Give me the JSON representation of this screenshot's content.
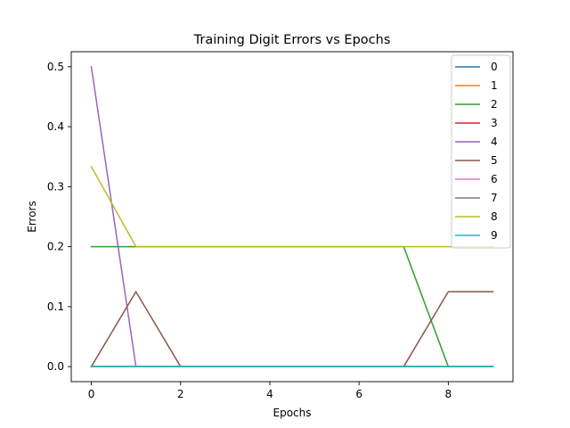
{
  "chart_data": {
    "type": "line",
    "title": "Training Digit Errors vs Epochs",
    "xlabel": "Epochs",
    "ylabel": "Errors",
    "xlim": [
      -0.45,
      9.45
    ],
    "ylim": [
      -0.025,
      0.525
    ],
    "xticks": [
      0,
      2,
      4,
      6,
      8
    ],
    "yticks": [
      0.0,
      0.1,
      0.2,
      0.3,
      0.4,
      0.5
    ],
    "ytick_labels": [
      "0.0",
      "0.1",
      "0.2",
      "0.3",
      "0.4",
      "0.5"
    ],
    "grid": false,
    "legend_position": "top-right",
    "x": [
      0,
      1,
      2,
      3,
      4,
      5,
      6,
      7,
      8,
      9
    ],
    "series": [
      {
        "name": "0",
        "color": "#1f77b4",
        "values": [
          0,
          0,
          0,
          0,
          0,
          0,
          0,
          0,
          0,
          0
        ]
      },
      {
        "name": "1",
        "color": "#ff7f0e",
        "values": [
          0,
          0,
          0,
          0,
          0,
          0,
          0,
          0,
          0,
          0
        ]
      },
      {
        "name": "2",
        "color": "#2ca02c",
        "values": [
          0.2,
          0.2,
          0.2,
          0.2,
          0.2,
          0.2,
          0.2,
          0.2,
          0,
          0
        ]
      },
      {
        "name": "3",
        "color": "#d62728",
        "values": [
          0,
          0,
          0,
          0,
          0,
          0,
          0,
          0,
          0,
          0
        ]
      },
      {
        "name": "4",
        "color": "#9467bd",
        "values": [
          0.5,
          0,
          0,
          0,
          0,
          0,
          0,
          0,
          0,
          0
        ]
      },
      {
        "name": "5",
        "color": "#8c564b",
        "values": [
          0,
          0.125,
          0,
          0,
          0,
          0,
          0,
          0,
          0.125,
          0.125
        ]
      },
      {
        "name": "6",
        "color": "#e377c2",
        "values": [
          0,
          0,
          0,
          0,
          0,
          0,
          0,
          0,
          0,
          0
        ]
      },
      {
        "name": "7",
        "color": "#7f7f7f",
        "values": [
          0,
          0,
          0,
          0,
          0,
          0,
          0,
          0,
          0,
          0
        ]
      },
      {
        "name": "8",
        "color": "#bcbd22",
        "values": [
          0.3333,
          0.2,
          0.2,
          0.2,
          0.2,
          0.2,
          0.2,
          0.2,
          0.2,
          0.2
        ]
      },
      {
        "name": "9",
        "color": "#17becf",
        "values": [
          0,
          0,
          0,
          0,
          0,
          0,
          0,
          0,
          0,
          0
        ]
      }
    ]
  }
}
